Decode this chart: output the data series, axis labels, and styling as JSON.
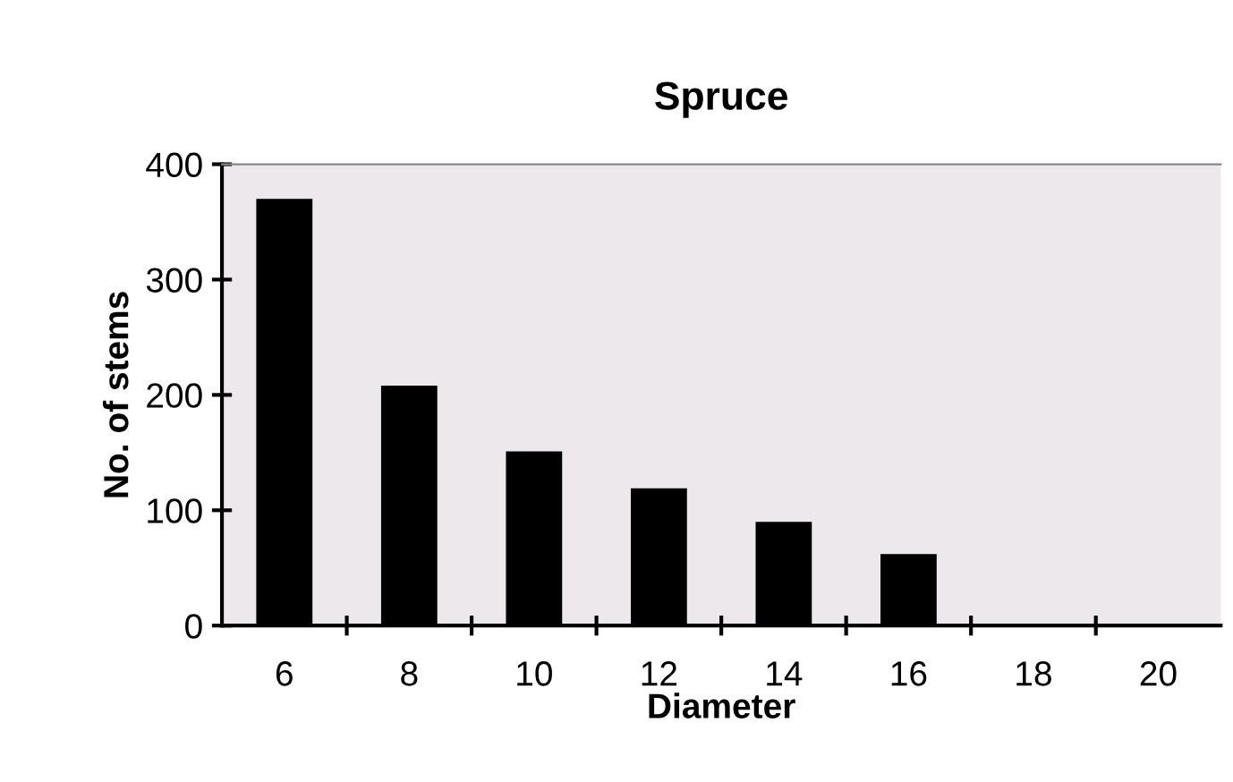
{
  "chart_data": {
    "type": "bar",
    "title": "Spruce",
    "xlabel": "Diameter",
    "ylabel": "No. of stems",
    "categories": [
      "6",
      "8",
      "10",
      "12",
      "14",
      "16",
      "18",
      "20"
    ],
    "values": [
      370,
      208,
      151,
      119,
      90,
      62,
      0,
      0
    ],
    "color": "#000000",
    "ylim": [
      0,
      400
    ],
    "yticks": [
      0,
      100,
      200,
      300,
      400
    ],
    "grid": false,
    "legend": false
  }
}
